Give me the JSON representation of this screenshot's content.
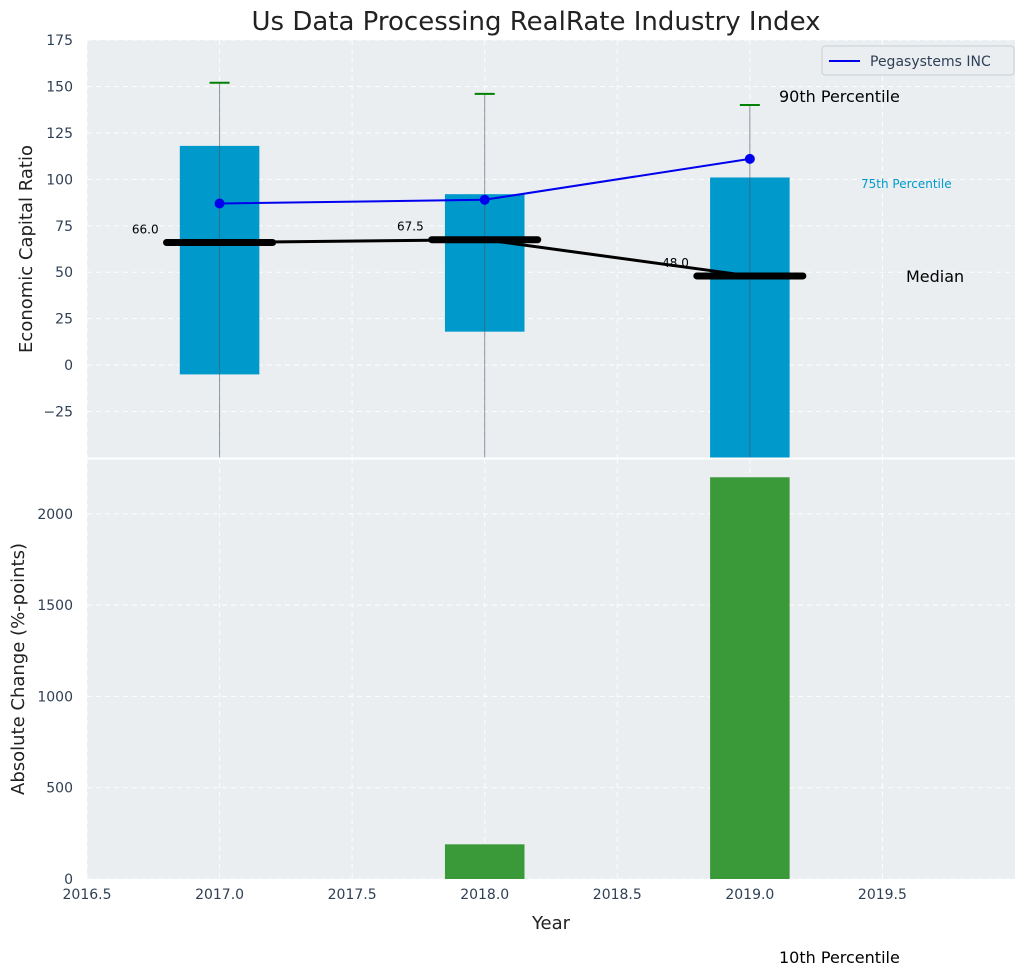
{
  "chart_data": {
    "title": "Us Data Processing RealRate Industry Index",
    "xlabel": "Year",
    "x_ticks": [
      "2016.5",
      "2017.0",
      "2017.5",
      "2018.0",
      "2018.5",
      "2019.0",
      "2019.5"
    ],
    "xlim": [
      2016.5,
      2020.0
    ],
    "colors": {
      "box": "#0099cc",
      "company": "#0000ee",
      "median": "#000000",
      "cap": "#008000",
      "change": "#3a9a3a",
      "bg": "#eaeef0",
      "p75_label": "#0099cc"
    },
    "top": {
      "type": "box",
      "ylabel": "Economic Capital Ratio",
      "ylim": [
        -50,
        175
      ],
      "y_ticks": [
        -25,
        0,
        25,
        50,
        75,
        100,
        125,
        150,
        175
      ],
      "years": [
        2017,
        2018,
        2019
      ],
      "p25": [
        -5,
        18,
        -50
      ],
      "p75": [
        118,
        92,
        101
      ],
      "p90": [
        152,
        146,
        140
      ],
      "median": [
        66.0,
        67.5,
        48.0
      ],
      "median_labels": [
        "66.0",
        "67.5",
        "48.0"
      ],
      "company": {
        "name": "Pegasystems INC",
        "values": [
          87,
          89,
          111
        ]
      },
      "annotations": {
        "p90": "90th Percentile",
        "p75": "75th Percentile",
        "median": "Median",
        "p10": "10th Percentile"
      }
    },
    "bottom": {
      "type": "bar",
      "ylabel": "Absolute Change (%-points)",
      "ylim": [
        0,
        2300
      ],
      "y_ticks": [
        0,
        500,
        1000,
        1500,
        2000
      ],
      "years": [
        2017,
        2018,
        2019
      ],
      "values": [
        0,
        190,
        2200
      ]
    }
  }
}
